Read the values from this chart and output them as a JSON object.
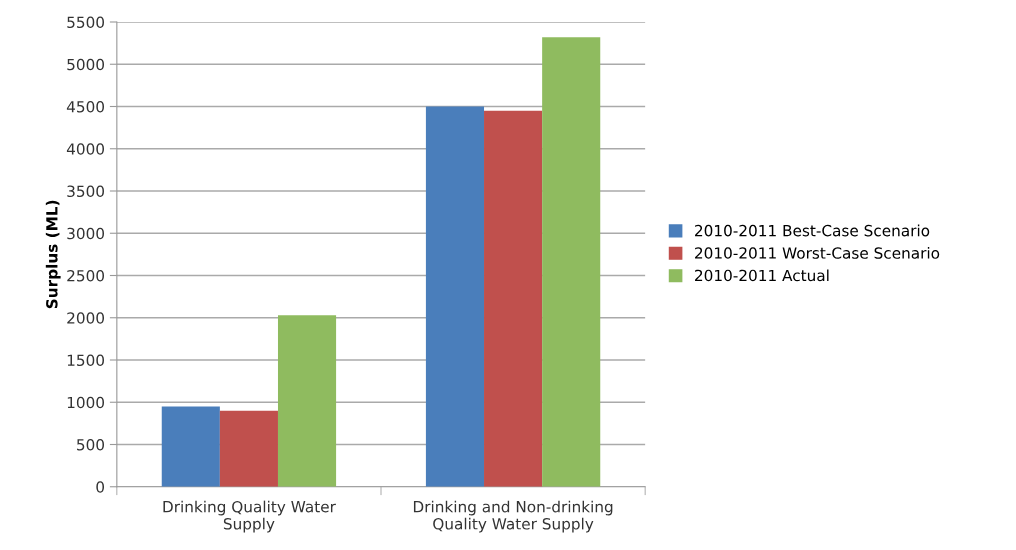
{
  "chart_data": {
    "type": "bar",
    "ylabel": "Surplus (ML)",
    "categories": [
      "Drinking Quality Water\nSupply",
      "Drinking and Non-drinking\nQuality Water Supply"
    ],
    "series": [
      {
        "name": "2010-2011 Best-Case Scenario",
        "color": "#4a7ebb",
        "values": [
          950,
          4500
        ]
      },
      {
        "name": "2010-2011 Worst-Case Scenario",
        "color": "#c0504d",
        "values": [
          900,
          4450
        ]
      },
      {
        "name": "2010-2011 Actual",
        "color": "#8fbb5f",
        "values": [
          2030,
          5320
        ]
      }
    ],
    "ylim": [
      0,
      5500
    ],
    "yticks": [
      0,
      500,
      1000,
      1500,
      2000,
      2500,
      3000,
      3500,
      4000,
      4500,
      5000,
      5500
    ],
    "grid": "y",
    "legend": "right"
  }
}
